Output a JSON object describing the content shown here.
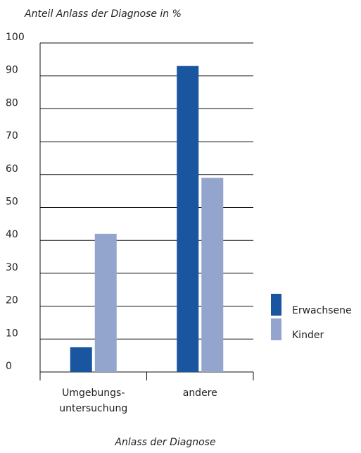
{
  "chart_data": {
    "type": "bar",
    "title": "Anteil Anlass der Diagnose in %",
    "x_label": "Anlass der Diagnose",
    "categories": [
      "Umgebungs-\nuntersuchung",
      "andere"
    ],
    "series": [
      {
        "name": "Erwachsene",
        "color": "#1a55a0",
        "values": [
          7.5,
          93
        ]
      },
      {
        "name": "Kinder",
        "color": "#93a5cc",
        "values": [
          42,
          59
        ]
      }
    ],
    "ylim": [
      0,
      100
    ],
    "yticks": [
      0,
      10,
      20,
      30,
      40,
      50,
      60,
      70,
      80,
      90,
      100
    ],
    "grid": true,
    "legend": "right"
  }
}
